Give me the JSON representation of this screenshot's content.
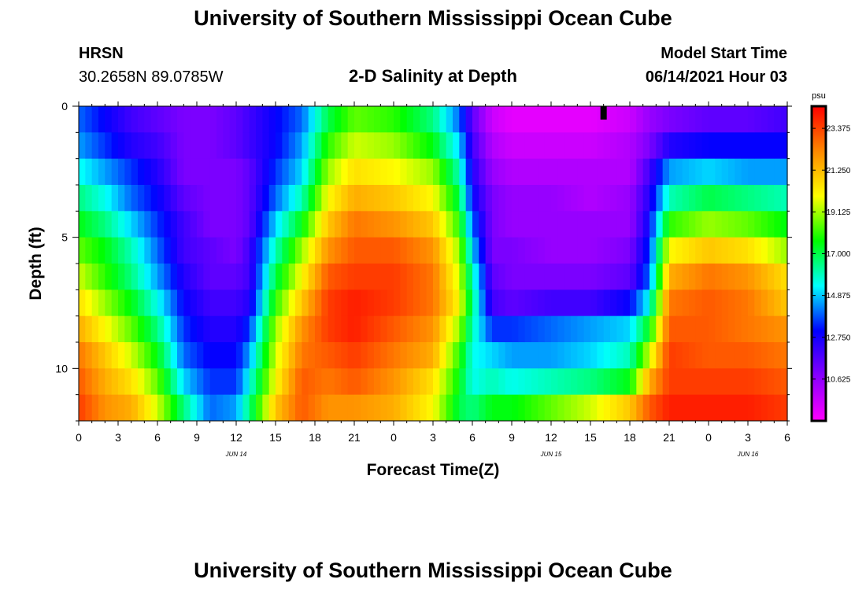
{
  "page": {
    "title_top": "University of Southern Mississippi Ocean Cube",
    "title_bottom": "University of Southern Mississippi Ocean Cube",
    "station": "HRSN",
    "coords": "30.2658N  89.0785W",
    "subtitle": "2-D Salinity at Depth",
    "model_label": "Model Start Time",
    "model_time": "06/14/2021 Hour 03"
  },
  "chart_data": {
    "type": "heatmap",
    "title": "2-D Salinity at Depth",
    "xlabel": "Forecast Time(Z)",
    "ylabel": "Depth (ft)",
    "x_range_hours": [
      0,
      54
    ],
    "y_range_ft": [
      0,
      12
    ],
    "x_ticks": [
      {
        "h": 0,
        "label": "0"
      },
      {
        "h": 3,
        "label": "3"
      },
      {
        "h": 6,
        "label": "6"
      },
      {
        "h": 9,
        "label": "9"
      },
      {
        "h": 12,
        "label": "12"
      },
      {
        "h": 15,
        "label": "15"
      },
      {
        "h": 18,
        "label": "18"
      },
      {
        "h": 21,
        "label": "21"
      },
      {
        "h": 24,
        "label": "0"
      },
      {
        "h": 27,
        "label": "3"
      },
      {
        "h": 30,
        "label": "6"
      },
      {
        "h": 33,
        "label": "9"
      },
      {
        "h": 36,
        "label": "12"
      },
      {
        "h": 39,
        "label": "15"
      },
      {
        "h": 42,
        "label": "18"
      },
      {
        "h": 45,
        "label": "21"
      },
      {
        "h": 48,
        "label": "0"
      },
      {
        "h": 51,
        "label": "3"
      },
      {
        "h": 54,
        "label": "6"
      }
    ],
    "date_labels": [
      {
        "h": 12,
        "label": "JUN 14"
      },
      {
        "h": 36,
        "label": "JUN 15"
      },
      {
        "h": 51,
        "label": "JUN 16"
      }
    ],
    "y_ticks": [
      {
        "ft": 0,
        "label": "0"
      },
      {
        "ft": 5,
        "label": "5"
      },
      {
        "ft": 10,
        "label": "10"
      }
    ],
    "now_marker_hour": 40,
    "colorbar": {
      "unit": "psu",
      "min": 8.5,
      "max": 24.5,
      "tick_values": [
        23.375,
        21.25,
        19.125,
        17.0,
        14.875,
        12.75,
        10.625
      ],
      "tick_labels": [
        "23.375",
        "21.250",
        "19.125",
        "17.000",
        "14.875",
        "12.750",
        "10.625"
      ],
      "colors": [
        "#ff00ff",
        "#8800ff",
        "#0000ff",
        "#00ffff",
        "#00ff00",
        "#ffff00",
        "#ff8800",
        "#ff0000"
      ]
    },
    "depth_levels_ft": [
      0.5,
      1.5,
      2.5,
      3.5,
      4.5,
      5.5,
      6.5,
      7.5,
      8.5,
      9.5,
      10.5,
      11.5
    ],
    "salinity_profiles": [
      {
        "h": 0,
        "values": [
          14,
          14.5,
          15.5,
          16.5,
          17.5,
          18.5,
          19.5,
          20.5,
          21.5,
          22.5,
          23,
          23.5
        ]
      },
      {
        "h": 2,
        "values": [
          13,
          13.5,
          14.5,
          15.5,
          16.5,
          17.5,
          18,
          19,
          20,
          21,
          21.5,
          22
        ]
      },
      {
        "h": 4,
        "values": [
          12,
          12.5,
          13.5,
          14,
          15,
          16,
          16.5,
          17.5,
          18.5,
          19.5,
          20.5,
          21.5
        ]
      },
      {
        "h": 6,
        "values": [
          11.5,
          12,
          12.5,
          13,
          13.5,
          14,
          14.5,
          15.5,
          16.5,
          17.5,
          18.5,
          19.5
        ]
      },
      {
        "h": 8,
        "values": [
          11,
          11,
          11,
          11.5,
          12,
          12,
          12.5,
          13,
          13.5,
          14,
          15,
          16.5
        ]
      },
      {
        "h": 10,
        "values": [
          11,
          11,
          11,
          11,
          11,
          11.5,
          11.5,
          12,
          12.5,
          13,
          13.5,
          14
        ]
      },
      {
        "h": 12,
        "values": [
          11.5,
          11.5,
          11,
          11,
          11,
          11,
          11.5,
          12,
          12.5,
          13,
          13.5,
          14.5
        ]
      },
      {
        "h": 13,
        "values": [
          12,
          12,
          11.5,
          11.5,
          11.5,
          12,
          12,
          12.5,
          13.5,
          14.5,
          15.5,
          16.5
        ]
      },
      {
        "h": 15,
        "values": [
          13,
          13,
          13.5,
          14,
          15,
          16,
          17,
          18,
          19,
          19.5,
          20,
          21
        ]
      },
      {
        "h": 17,
        "values": [
          14,
          14.5,
          15,
          16,
          17.5,
          19,
          20,
          21,
          22,
          22.5,
          23,
          23
        ]
      },
      {
        "h": 19,
        "values": [
          17,
          18,
          19,
          20,
          21,
          22,
          23,
          23.5,
          23.5,
          23,
          22.5,
          22
        ]
      },
      {
        "h": 21,
        "values": [
          18.5,
          19.5,
          20.5,
          21.5,
          22.5,
          23,
          23.5,
          24,
          24,
          23.5,
          23,
          22
        ]
      },
      {
        "h": 24,
        "values": [
          18,
          19,
          20,
          21,
          22,
          23,
          23.5,
          23.5,
          23,
          22.5,
          22,
          21.5
        ]
      },
      {
        "h": 27,
        "values": [
          16.5,
          17.5,
          19,
          20,
          21,
          22,
          22.5,
          22.5,
          22,
          21.5,
          20.5,
          20
        ]
      },
      {
        "h": 29,
        "values": [
          14,
          15,
          16,
          17,
          18,
          19,
          19.5,
          20,
          19,
          18,
          17.5,
          17
        ]
      },
      {
        "h": 30,
        "values": [
          11.5,
          12,
          12.5,
          13,
          14,
          15,
          16,
          16.5,
          16,
          15.5,
          15.5,
          16.5
        ]
      },
      {
        "h": 31.5,
        "values": [
          9.5,
          10,
          10.5,
          11,
          11,
          11,
          11.5,
          12,
          13.5,
          15,
          16,
          17.5
        ]
      },
      {
        "h": 33,
        "values": [
          9,
          9.5,
          10,
          10.5,
          10.5,
          11,
          11,
          11.5,
          13.5,
          14.5,
          15.5,
          17.5
        ]
      },
      {
        "h": 36,
        "values": [
          9,
          9.5,
          10,
          10.5,
          10.5,
          10.5,
          11,
          12,
          14,
          14.5,
          16,
          18.5
        ]
      },
      {
        "h": 39,
        "values": [
          9,
          9.5,
          10,
          10,
          10.5,
          10.5,
          11,
          12,
          14.5,
          15,
          16.5,
          19.5
        ]
      },
      {
        "h": 42,
        "values": [
          9.5,
          10,
          10,
          10.5,
          10.5,
          11,
          11.5,
          13,
          15,
          16,
          17.5,
          21
        ]
      },
      {
        "h": 43.5,
        "values": [
          10.5,
          11,
          12,
          12.5,
          13,
          13.5,
          14,
          15.5,
          17.5,
          19.5,
          21.5,
          23
        ]
      },
      {
        "h": 45,
        "values": [
          11,
          12.5,
          14.5,
          16,
          18,
          20,
          21.5,
          22.5,
          23,
          23.5,
          23.5,
          24
        ]
      },
      {
        "h": 48,
        "values": [
          11.5,
          13,
          15,
          17,
          19,
          21,
          22.5,
          23,
          23,
          23,
          23.5,
          24
        ]
      },
      {
        "h": 51,
        "values": [
          11.5,
          13,
          14.5,
          16.5,
          18.5,
          20.5,
          22,
          22.5,
          22.5,
          23,
          23.5,
          24
        ]
      },
      {
        "h": 54,
        "values": [
          12,
          13,
          14.5,
          16,
          17.5,
          19,
          20.5,
          21,
          22,
          22.5,
          23,
          23.5
        ]
      }
    ]
  }
}
